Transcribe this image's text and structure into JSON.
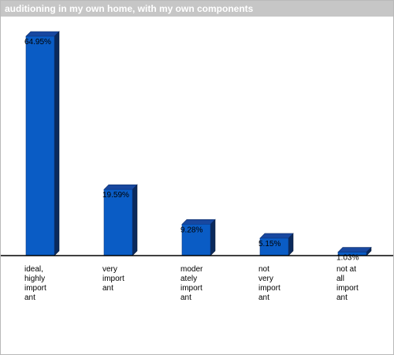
{
  "chart_data": {
    "type": "bar",
    "title": "auditioning in my own home, with my own components",
    "categories": [
      [
        "ideal,",
        "highly",
        "import",
        "ant"
      ],
      [
        "very",
        "import",
        "ant"
      ],
      [
        "moder",
        "ately",
        "import",
        "ant"
      ],
      [
        "not",
        "very",
        "import",
        "ant"
      ],
      [
        "not at",
        "all",
        "import",
        "ant"
      ]
    ],
    "values": [
      64.95,
      19.59,
      9.28,
      5.15,
      1.03
    ],
    "value_labels": [
      "64.95%",
      "19.59%",
      "9.28%",
      "5.15%",
      "1.03%"
    ],
    "ylim": [
      0,
      64.95
    ],
    "grid": false,
    "colors": {
      "front": "#0a5cc5",
      "top": "#1848a0",
      "side": "#0b2a5c",
      "axis": "#000000",
      "title_bg": "#c6c6c6"
    }
  }
}
